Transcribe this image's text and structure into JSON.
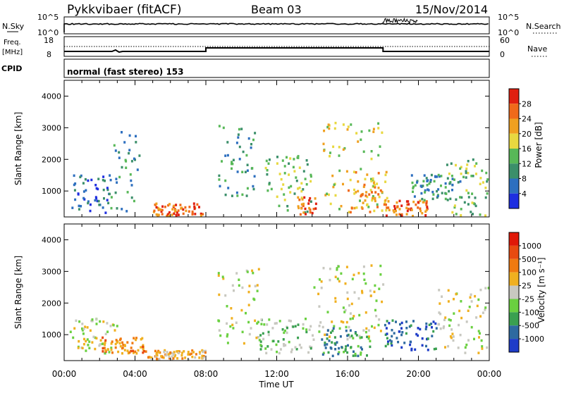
{
  "header": {
    "station": "Pykkvibaer (fitACF)",
    "beam": "Beam 03",
    "date": "15/Nov/2014",
    "cpid": "normal (fast stereo) 153"
  },
  "top_panels": {
    "nsky": {
      "label": "N.Sky",
      "left_ticks": [
        "10^5",
        "10^0"
      ],
      "right_ticks": [
        "10^5",
        "10^0"
      ],
      "right_label": "N.Search"
    },
    "freq": {
      "label_top": "Freq.",
      "label_unit": "[MHz]",
      "left_ticks": [
        "18",
        "8"
      ],
      "right_ticks": [
        "60",
        "0"
      ],
      "right_label": "Nave"
    },
    "cpid": {
      "label": "CPID"
    }
  },
  "chart_data": [
    {
      "type": "heatmap",
      "name": "power",
      "ylabel": "Slant Range [km]",
      "ylim": [
        180,
        4500
      ],
      "yticks": [
        "1000",
        "2000",
        "3000",
        "4000"
      ],
      "xlabel": "Time UT",
      "xlim_hours": [
        0,
        24
      ],
      "colorbar": {
        "title": "Power [dB]",
        "ticks": [
          "4",
          "8",
          "12",
          "16",
          "20",
          "24",
          "28"
        ],
        "colors": [
          "#1e2ee0",
          "#2d6fbf",
          "#3b8f6a",
          "#58b858",
          "#e8d840",
          "#f0a020",
          "#f06a1a",
          "#e02010"
        ]
      },
      "regions_hours_km": [
        {
          "x": [
            0.3,
            2.6
          ],
          "y": [
            300,
            1500
          ],
          "level": 1
        },
        {
          "x": [
            2.6,
            4.2
          ],
          "y": [
            300,
            3100
          ],
          "level": 2
        },
        {
          "x": [
            5.0,
            7.8
          ],
          "y": [
            200,
            600
          ],
          "level": 6
        },
        {
          "x": [
            8.6,
            10.8
          ],
          "y": [
            600,
            3100
          ],
          "level": 2
        },
        {
          "x": [
            11.2,
            13.9
          ],
          "y": [
            300,
            2100
          ],
          "level": 3
        },
        {
          "x": [
            13.0,
            14.2
          ],
          "y": [
            250,
            800
          ],
          "level": 6
        },
        {
          "x": [
            14.5,
            17.9
          ],
          "y": [
            400,
            3200
          ],
          "level": 4
        },
        {
          "x": [
            16.0,
            18.3
          ],
          "y": [
            300,
            1600
          ],
          "level": 5
        },
        {
          "x": [
            18.0,
            20.5
          ],
          "y": [
            200,
            700
          ],
          "level": 6
        },
        {
          "x": [
            19.5,
            22.5
          ],
          "y": [
            700,
            1500
          ],
          "level": 2
        },
        {
          "x": [
            21.5,
            24.0
          ],
          "y": [
            200,
            2000
          ],
          "level": 3
        }
      ]
    },
    {
      "type": "heatmap",
      "name": "velocity",
      "ylabel": "Slant Range [km]",
      "ylim": [
        180,
        4500
      ],
      "yticks": [
        "1000",
        "2000",
        "3000",
        "4000"
      ],
      "xlabel": "Time UT",
      "xticks": [
        "00:00",
        "04:00",
        "08:00",
        "12:00",
        "16:00",
        "20:00",
        "00:00"
      ],
      "colorbar": {
        "title": "Velocity  [m s⁻¹]",
        "ticks": [
          "1000",
          "500",
          "100",
          "25",
          "-25",
          "-100",
          "-500",
          "-1000"
        ],
        "colors": [
          "#1e3cc8",
          "#2e6aa0",
          "#3aa050",
          "#6ad040",
          "#c8c8c0",
          "#f0b020",
          "#f07a10",
          "#e84a10",
          "#e01808"
        ]
      },
      "regions_hours_km": [
        {
          "x": [
            0.3,
            3.0
          ],
          "y": [
            400,
            1500
          ],
          "level": 4
        },
        {
          "x": [
            2.0,
            4.5
          ],
          "y": [
            400,
            900
          ],
          "level": 6
        },
        {
          "x": [
            4.5,
            8.0
          ],
          "y": [
            200,
            500
          ],
          "level": 5
        },
        {
          "x": [
            8.6,
            11.0
          ],
          "y": [
            700,
            3100
          ],
          "level": 4
        },
        {
          "x": [
            11.0,
            14.0
          ],
          "y": [
            400,
            1500
          ],
          "level": 3
        },
        {
          "x": [
            14.0,
            18.0
          ],
          "y": [
            800,
            3200
          ],
          "level": 4
        },
        {
          "x": [
            14.5,
            17.5
          ],
          "y": [
            300,
            1200
          ],
          "level": 2
        },
        {
          "x": [
            18.0,
            21.0
          ],
          "y": [
            500,
            1500
          ],
          "level": 1
        },
        {
          "x": [
            21.0,
            24.0
          ],
          "y": [
            300,
            2500
          ],
          "level": 4
        }
      ]
    }
  ]
}
